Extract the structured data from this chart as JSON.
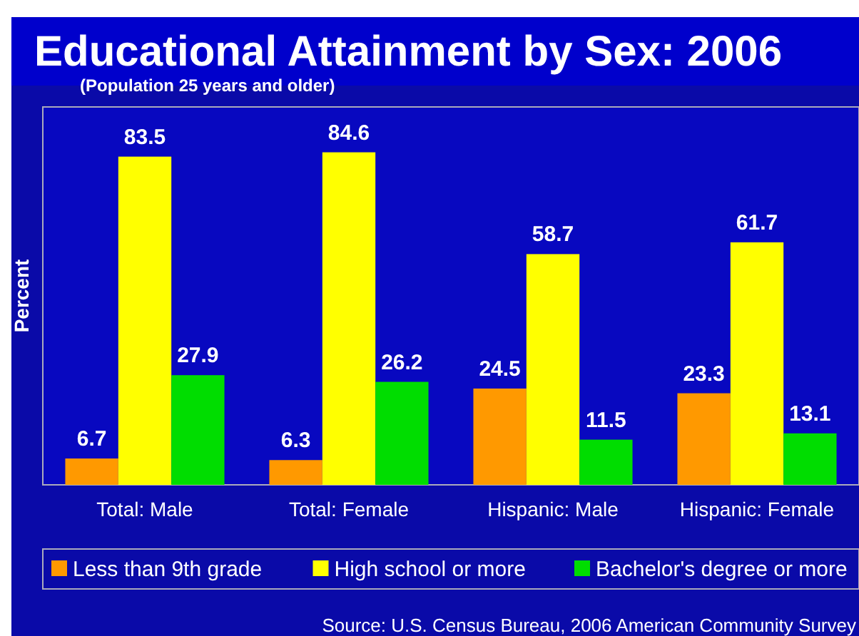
{
  "chart_data": {
    "type": "bar",
    "title": "Educational Attainment by Sex: 2006",
    "subtitle": "(Population 25 years and older)",
    "ylabel": "Percent",
    "categories": [
      "Total: Male",
      "Total: Female",
      "Hispanic: Male",
      "Hispanic: Female"
    ],
    "series": [
      {
        "name": "Less than 9th grade",
        "color": "#ff9900",
        "values": [
          6.7,
          6.3,
          24.5,
          23.3
        ]
      },
      {
        "name": "High school or more",
        "color": "#ffff00",
        "values": [
          83.5,
          84.6,
          58.7,
          61.7
        ]
      },
      {
        "name": "Bachelor's degree or more",
        "color": "#00dd00",
        "values": [
          27.9,
          26.2,
          11.5,
          13.1
        ]
      }
    ],
    "data_labels": true,
    "legend": "bottom",
    "annotations": [
      "Source: U.S. Census Bureau, 2006  American Community Survey"
    ]
  }
}
